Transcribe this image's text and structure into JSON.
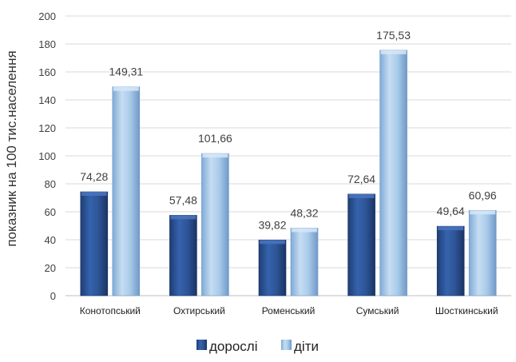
{
  "chart_data": {
    "type": "bar",
    "title": "",
    "xlabel": "",
    "ylabel": "показник на 100 тис.населення",
    "ylim": [
      0,
      200
    ],
    "yticks": [
      0,
      20,
      40,
      60,
      80,
      100,
      120,
      140,
      160,
      180,
      200
    ],
    "grid": true,
    "legend_position": "bottom",
    "categories": [
      "Конотопський",
      "Охтирський",
      "Роменський",
      "Сумський",
      "Шосткинський"
    ],
    "series": [
      {
        "name": "дорослі",
        "values": [
          74.28,
          57.48,
          39.82,
          72.64,
          49.64
        ],
        "labels": [
          "74,28",
          "57,48",
          "39,82",
          "72,64",
          "49,64"
        ],
        "color": "#2E5597"
      },
      {
        "name": "діти",
        "values": [
          149.31,
          101.66,
          48.32,
          175.53,
          60.96
        ],
        "labels": [
          "149,31",
          "101,66",
          "48,32",
          "175,53",
          "60,96"
        ],
        "color": "#9DC3E6"
      }
    ]
  }
}
